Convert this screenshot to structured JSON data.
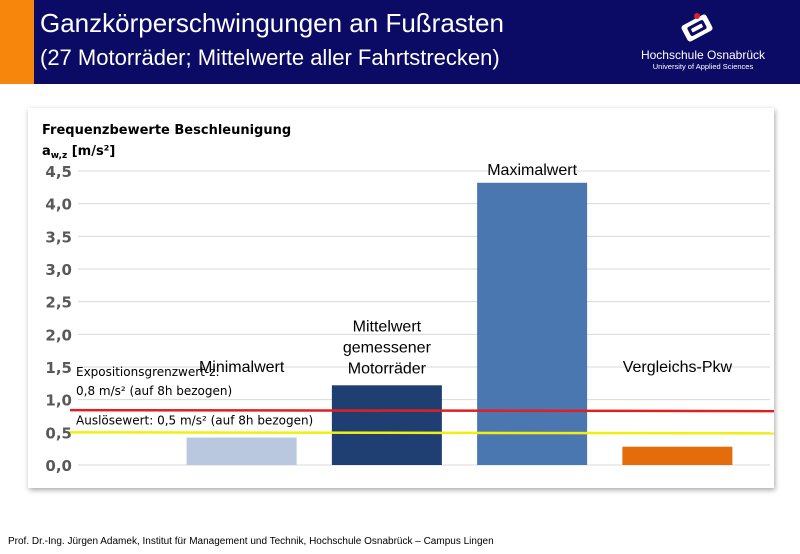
{
  "header": {
    "title": "Ganzkörperschwingungen an Fußrasten",
    "subtitle": "(27 Motorräder; Mittelwerte aller Fahrtstrecken)",
    "logo_name": "Hochschule Osnabrück",
    "logo_sub": "University of Applied Sciences",
    "colors": {
      "background": "#0b0b66",
      "accent": "#f7860d"
    }
  },
  "chart_data": {
    "type": "bar",
    "ylabel_line1": "Frequenzbewerte Beschleunigung",
    "ylabel_line2": "a",
    "ylabel_sub": "w,z",
    "ylabel_unit": " [m/s²]",
    "ylim": [
      0,
      4.5
    ],
    "yticks": [
      "0,0",
      "0,5",
      "1,0",
      "1,5",
      "2,0",
      "2,5",
      "3,0",
      "3,5",
      "4,0",
      "4,5"
    ],
    "grid": true,
    "bars": [
      {
        "label_lines": [
          "Minimalwert"
        ],
        "value": 0.42,
        "color": "#b9c7df"
      },
      {
        "label_lines": [
          "Mittelwert",
          "gemessener",
          "Motorräder"
        ],
        "value": 1.22,
        "color": "#1f3f72"
      },
      {
        "label_lines": [
          "Maximalwert"
        ],
        "value": 4.32,
        "color": "#4a77b0"
      },
      {
        "label_lines": [
          "Vergleichs-Pkw"
        ],
        "value": 0.28,
        "color": "#e46c0a"
      }
    ],
    "reference_lines": [
      {
        "label_lines": [
          "Expositionsgrenzwert-z:",
          "0,8 m/s² (auf 8h bezogen)"
        ],
        "value": 0.84,
        "color": "#e02020"
      },
      {
        "label_lines": [
          "Auslösewert: 0,5 m/s² (auf 8h bezogen)"
        ],
        "value": 0.5,
        "color": "#f0f010"
      }
    ]
  },
  "footer": {
    "text": "Prof. Dr.-Ing. Jürgen Adamek,  Institut für Management und Technik, Hochschule Osnabrück – Campus Lingen"
  }
}
